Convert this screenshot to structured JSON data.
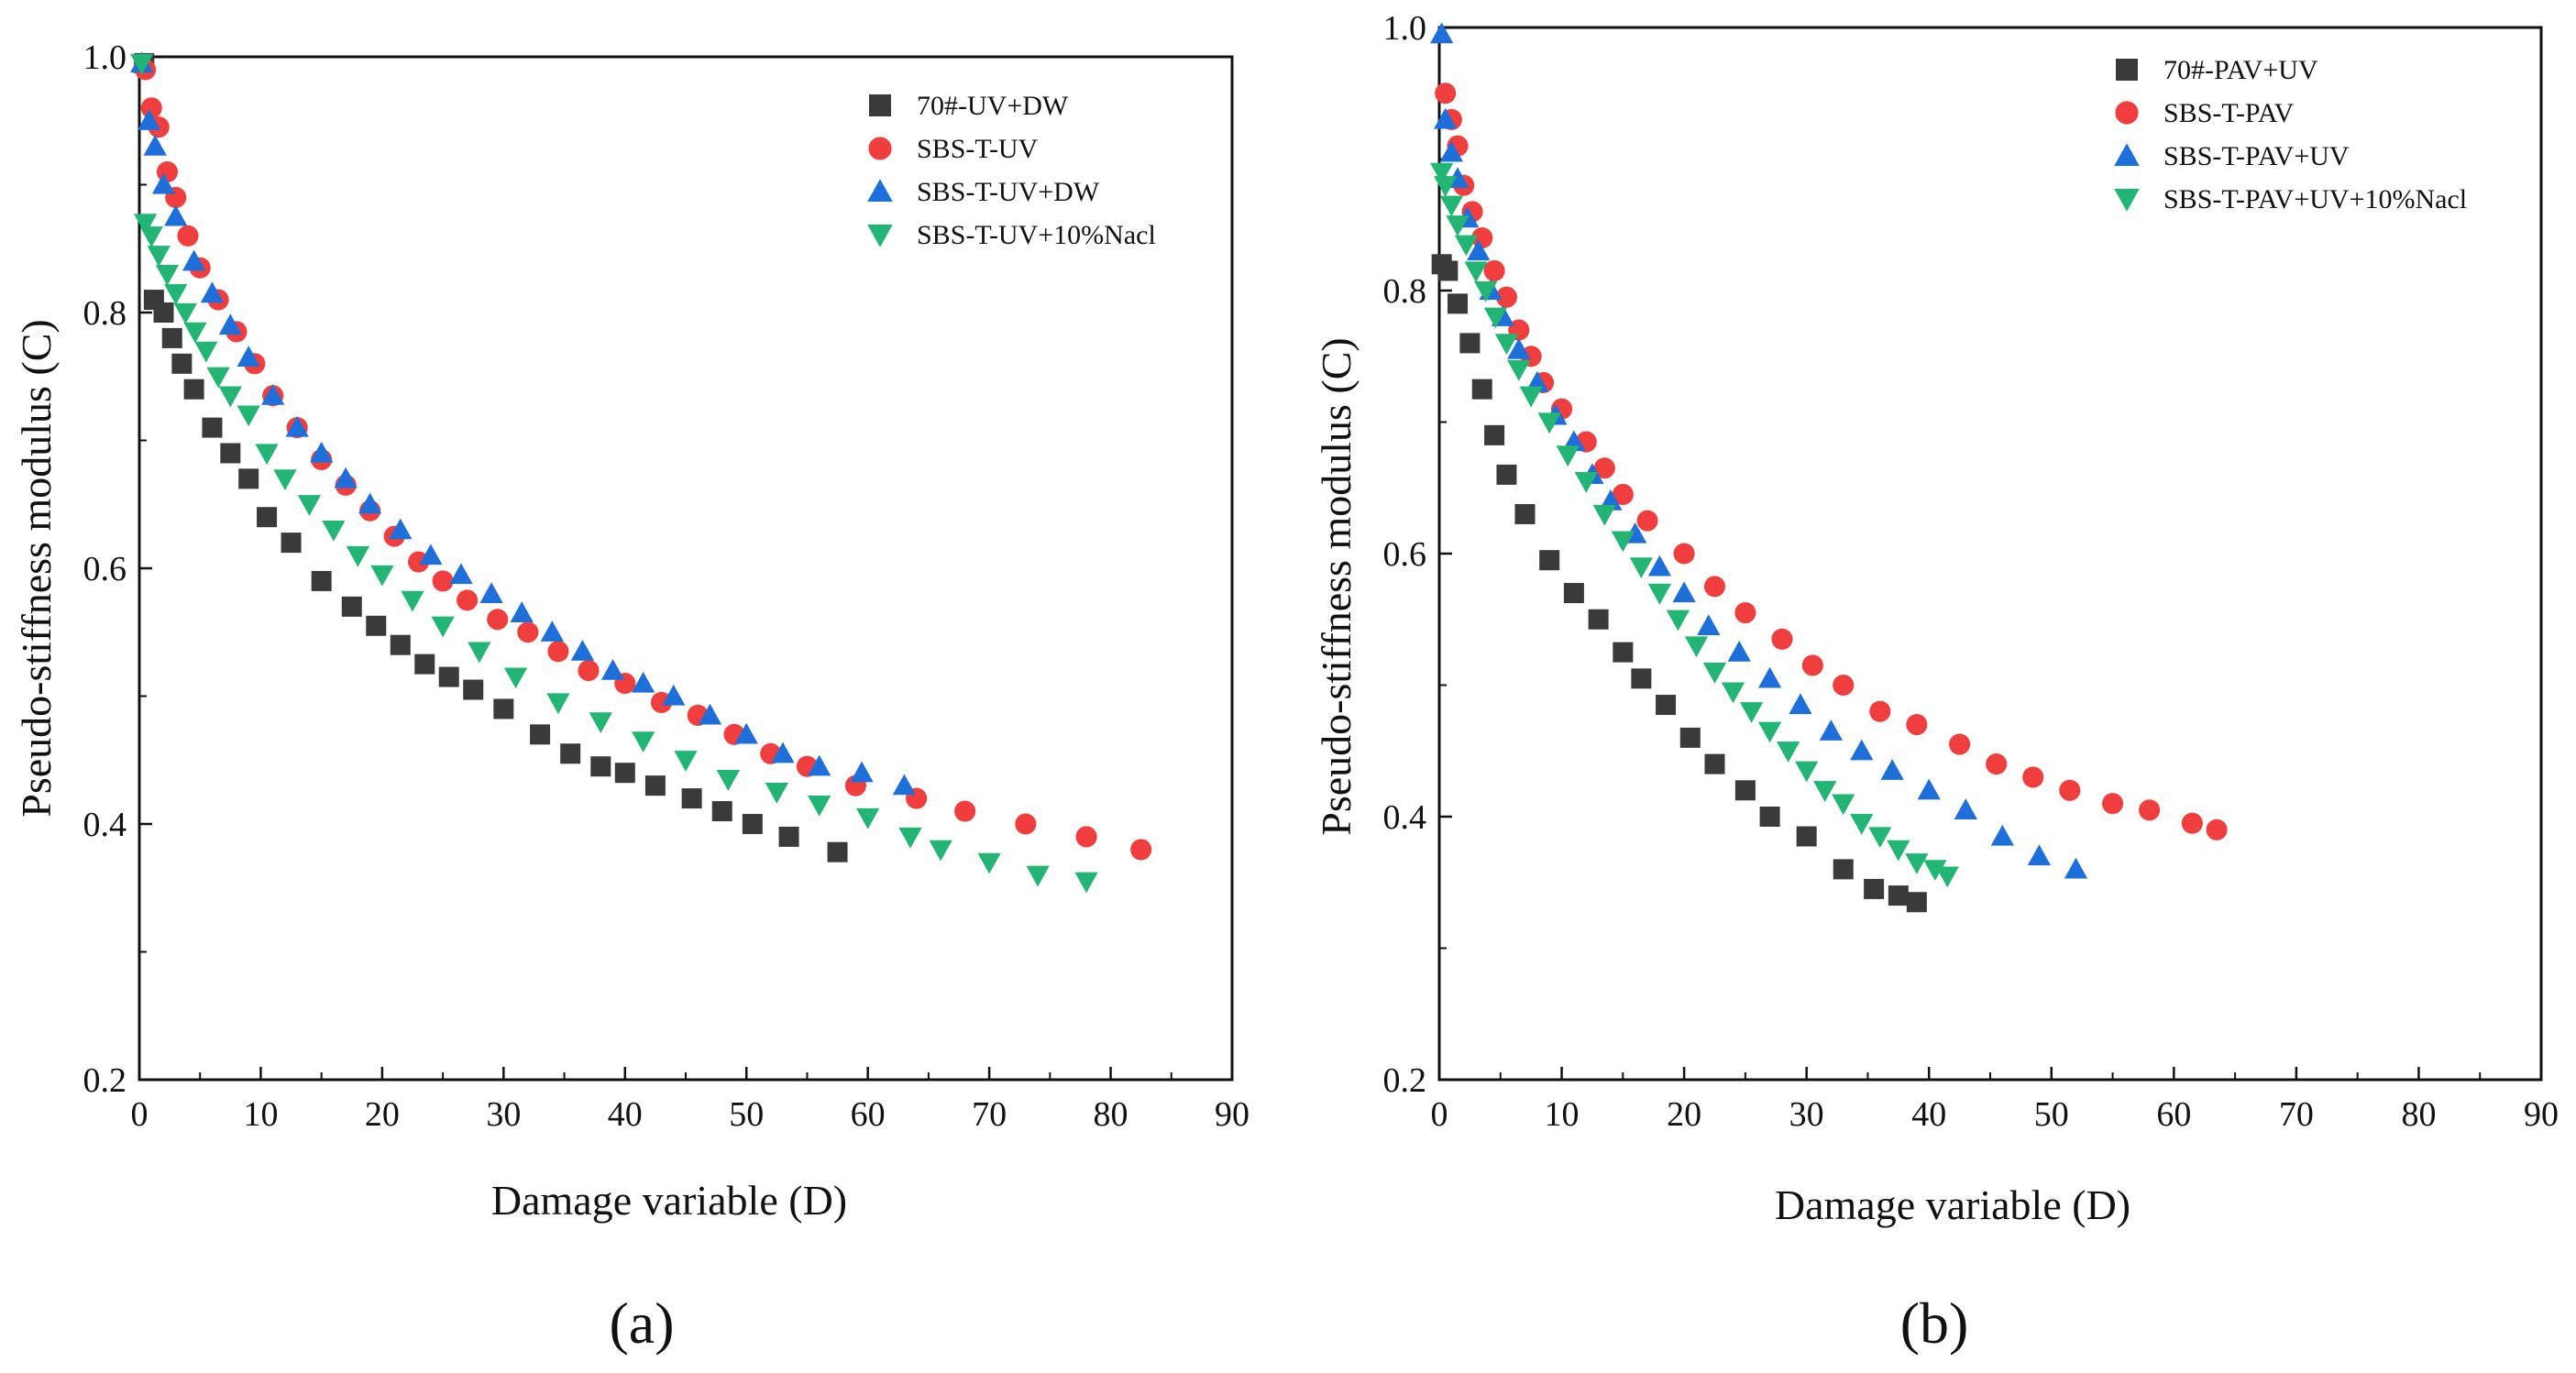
{
  "chart_data": [
    {
      "panel_label": "(a)",
      "type": "scatter",
      "xlabel": "Damage variable (D)",
      "ylabel": "Pseudo-stiffness modulus (C)",
      "xlim": [
        0,
        90
      ],
      "ylim": [
        0.2,
        1.0
      ],
      "xticks": [
        "0",
        "10",
        "20",
        "30",
        "40",
        "50",
        "60",
        "70",
        "80",
        "90"
      ],
      "yticks": [
        "0.2",
        "0.4",
        "0.6",
        "0.8",
        "1.0"
      ],
      "legend_position": "top-right",
      "series": [
        {
          "name": "70#-UV+DW",
          "marker": "square",
          "color": "#3a3a3a",
          "x": [
            0.4,
            1.2,
            2,
            2.7,
            3.5,
            4.5,
            6,
            7.5,
            9,
            10.5,
            12.5,
            15,
            17.5,
            19.5,
            21.5,
            23.5,
            25.5,
            27.5,
            30,
            33,
            35.5,
            38,
            40,
            42.5,
            45.5,
            48,
            50.5,
            53.5,
            57.5
          ],
          "y": [
            0.995,
            0.81,
            0.8,
            0.78,
            0.76,
            0.74,
            0.71,
            0.69,
            0.67,
            0.64,
            0.62,
            0.59,
            0.57,
            0.555,
            0.54,
            0.525,
            0.515,
            0.505,
            0.49,
            0.47,
            0.455,
            0.445,
            0.44,
            0.43,
            0.42,
            0.41,
            0.4,
            0.39,
            0.378
          ]
        },
        {
          "name": "SBS-T-UV",
          "marker": "circle",
          "color": "#f03e3e",
          "x": [
            0.5,
            1,
            1.6,
            2.3,
            3,
            4,
            5,
            6.5,
            8,
            9.5,
            11,
            13,
            15,
            17,
            19,
            21,
            23,
            25,
            27,
            29.5,
            32,
            34.5,
            37,
            40,
            43,
            46,
            49,
            52,
            55,
            59,
            64,
            68,
            73,
            78,
            82.5
          ],
          "y": [
            0.99,
            0.96,
            0.945,
            0.91,
            0.89,
            0.86,
            0.835,
            0.81,
            0.785,
            0.76,
            0.735,
            0.71,
            0.685,
            0.665,
            0.645,
            0.625,
            0.605,
            0.59,
            0.575,
            0.56,
            0.55,
            0.535,
            0.52,
            0.51,
            0.495,
            0.485,
            0.47,
            0.455,
            0.445,
            0.43,
            0.42,
            0.41,
            0.4,
            0.39,
            0.38
          ]
        },
        {
          "name": "SBS-T-UV+DW",
          "marker": "triangle-up",
          "color": "#1e6fd9",
          "x": [
            0.2,
            0.8,
            1.3,
            2,
            3,
            4.5,
            6,
            7.5,
            9,
            11,
            13,
            15,
            17,
            19,
            21.5,
            24,
            26.5,
            29,
            31.5,
            34,
            36.5,
            39,
            41.5,
            44,
            47,
            50,
            53,
            56,
            59.5,
            63
          ],
          "y": [
            0.995,
            0.95,
            0.93,
            0.9,
            0.875,
            0.84,
            0.815,
            0.79,
            0.765,
            0.735,
            0.71,
            0.69,
            0.67,
            0.65,
            0.63,
            0.61,
            0.595,
            0.58,
            0.565,
            0.55,
            0.535,
            0.52,
            0.51,
            0.5,
            0.485,
            0.47,
            0.455,
            0.445,
            0.44,
            0.43
          ]
        },
        {
          "name": "SBS-T-UV+10%Nacl",
          "marker": "triangle-down",
          "color": "#22b573",
          "x": [
            0.2,
            0.5,
            1,
            1.6,
            2.3,
            3,
            3.8,
            4.6,
            5.5,
            6.5,
            7.5,
            9,
            10.5,
            12,
            14,
            16,
            18,
            20,
            22.5,
            25,
            28,
            31,
            34.5,
            38,
            41.5,
            45,
            48.5,
            52.5,
            56,
            60,
            63.5,
            66,
            70,
            74,
            78
          ],
          "y": [
            0.995,
            0.87,
            0.86,
            0.845,
            0.83,
            0.815,
            0.8,
            0.785,
            0.77,
            0.75,
            0.735,
            0.72,
            0.69,
            0.67,
            0.65,
            0.63,
            0.61,
            0.595,
            0.575,
            0.555,
            0.535,
            0.515,
            0.495,
            0.48,
            0.465,
            0.45,
            0.435,
            0.425,
            0.415,
            0.405,
            0.39,
            0.38,
            0.37,
            0.36,
            0.355
          ]
        }
      ]
    },
    {
      "panel_label": "(b)",
      "type": "scatter",
      "xlabel": "Damage variable (D)",
      "ylabel": "Pseudo-stiffness modulus (C)",
      "xlim": [
        0,
        90
      ],
      "ylim": [
        0.2,
        1.0
      ],
      "xticks": [
        "0",
        "10",
        "20",
        "30",
        "40",
        "50",
        "60",
        "70",
        "80",
        "90"
      ],
      "yticks": [
        "0.2",
        "0.4",
        "0.6",
        "0.8",
        "1.0"
      ],
      "legend_position": "top-right",
      "series": [
        {
          "name": "70#-PAV+UV",
          "marker": "square",
          "color": "#3a3a3a",
          "x": [
            0.2,
            0.7,
            1.5,
            2.5,
            3.5,
            4.5,
            5.5,
            7,
            9,
            11,
            13,
            15,
            16.5,
            18.5,
            20.5,
            22.5,
            25,
            27,
            30,
            33,
            35.5,
            37.5,
            39
          ],
          "y": [
            0.82,
            0.815,
            0.79,
            0.76,
            0.725,
            0.69,
            0.66,
            0.63,
            0.595,
            0.57,
            0.55,
            0.525,
            0.505,
            0.485,
            0.46,
            0.44,
            0.42,
            0.4,
            0.385,
            0.36,
            0.345,
            0.34,
            0.335
          ]
        },
        {
          "name": "SBS-T-PAV",
          "marker": "circle",
          "color": "#f03e3e",
          "x": [
            0.5,
            1,
            1.5,
            2,
            2.7,
            3.5,
            4.5,
            5.5,
            6.5,
            7.5,
            8.5,
            10,
            12,
            13.5,
            15,
            17,
            20,
            22.5,
            25,
            28,
            30.5,
            33,
            36,
            39,
            42.5,
            45.5,
            48.5,
            51.5,
            55,
            58,
            61.5,
            63.5
          ],
          "y": [
            0.95,
            0.93,
            0.91,
            0.88,
            0.86,
            0.84,
            0.815,
            0.795,
            0.77,
            0.75,
            0.73,
            0.71,
            0.685,
            0.665,
            0.645,
            0.625,
            0.6,
            0.575,
            0.555,
            0.535,
            0.515,
            0.5,
            0.48,
            0.47,
            0.455,
            0.44,
            0.43,
            0.42,
            0.41,
            0.405,
            0.395,
            0.39
          ]
        },
        {
          "name": "SBS-T-PAV+UV",
          "marker": "triangle-up",
          "color": "#1e6fd9",
          "x": [
            0.2,
            0.5,
            1,
            1.5,
            2.3,
            3.2,
            4.2,
            5.2,
            6.5,
            8,
            9.5,
            11,
            12.5,
            14,
            16,
            18,
            20,
            22,
            24.5,
            27,
            29.5,
            32,
            34.5,
            37,
            40,
            43,
            46,
            49,
            52
          ],
          "y": [
            0.995,
            0.93,
            0.905,
            0.885,
            0.855,
            0.83,
            0.8,
            0.78,
            0.755,
            0.73,
            0.705,
            0.685,
            0.66,
            0.64,
            0.615,
            0.59,
            0.57,
            0.545,
            0.525,
            0.505,
            0.485,
            0.465,
            0.45,
            0.435,
            0.42,
            0.405,
            0.385,
            0.37,
            0.36
          ]
        },
        {
          "name": "SBS-T-PAV+UV+10%Nacl",
          "marker": "triangle-down",
          "color": "#22b573",
          "x": [
            0.2,
            0.5,
            1,
            1.5,
            2.2,
            3,
            3.8,
            4.6,
            5.5,
            6.5,
            7.5,
            9,
            10.5,
            12,
            13.5,
            15,
            16.5,
            18,
            19.5,
            21,
            22.5,
            24,
            25.5,
            27,
            28.5,
            30,
            31.5,
            33,
            34.5,
            36,
            37.5,
            39,
            40.5,
            41.5
          ],
          "y": [
            0.89,
            0.88,
            0.865,
            0.85,
            0.835,
            0.815,
            0.8,
            0.78,
            0.76,
            0.74,
            0.72,
            0.7,
            0.675,
            0.655,
            0.63,
            0.61,
            0.59,
            0.57,
            0.55,
            0.53,
            0.51,
            0.495,
            0.48,
            0.465,
            0.45,
            0.435,
            0.42,
            0.41,
            0.395,
            0.385,
            0.375,
            0.365,
            0.36,
            0.355
          ]
        }
      ]
    }
  ]
}
